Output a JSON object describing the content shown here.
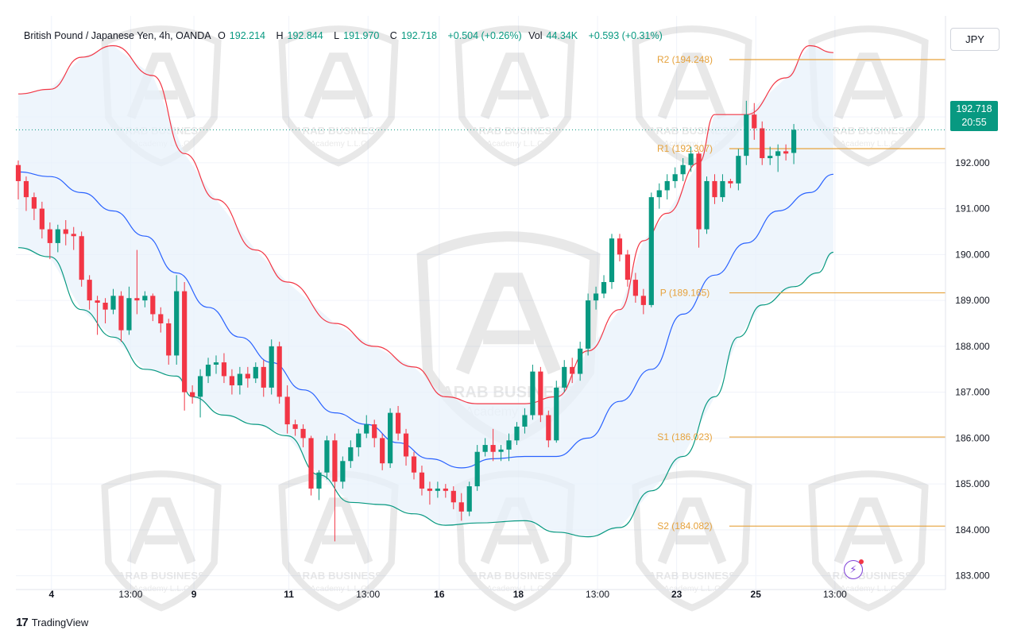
{
  "legend": {
    "symbol": "British Pound / Japanese Yen, 4h, OANDA",
    "open_label": "O",
    "open": "192.214",
    "high_label": "H",
    "high": "192.844",
    "low_label": "L",
    "low": "191.970",
    "close_label": "C",
    "close": "192.718",
    "change": "+0.504 (+0.26%)",
    "vol_label": "Vol",
    "vol": "44.34K",
    "vol_change": "+0.593 (+0.31%)"
  },
  "currency_button": "JPY",
  "last_price": {
    "price": "192.718",
    "countdown": "20:55"
  },
  "branding": {
    "name": "TradingView",
    "watermark_line1": "ARAB BUSINESS",
    "watermark_line2": "Academy L.L.C"
  },
  "colors": {
    "up": "#089981",
    "down": "#f23645",
    "pivot": "#e6a23c",
    "bb_mid": "#2962ff",
    "bb_upper": "#f23645",
    "bb_lower": "#089981",
    "band_fill": "#e8f1fb"
  },
  "chart_data": {
    "type": "candlestick",
    "ylim": [
      182.7,
      195.2
    ],
    "y_ticks": [
      "183.000",
      "184.000",
      "185.000",
      "186.000",
      "187.000",
      "188.000",
      "189.000",
      "190.000",
      "191.000",
      "192.000",
      "193.000"
    ],
    "x_ticks": [
      "4",
      "13:00",
      "9",
      "11",
      "13:00",
      "16",
      "18",
      "13:00",
      "23",
      "25",
      "13:00"
    ],
    "x_tick_bars": [
      5,
      15,
      23,
      35,
      45,
      54,
      64,
      74,
      84,
      94,
      104
    ],
    "pivot_levels": [
      {
        "label": "R2",
        "value": 194.248,
        "text": "R2 (194.248)"
      },
      {
        "label": "R1",
        "value": 192.307,
        "text": "R1 (192.307)"
      },
      {
        "label": "P",
        "value": 189.165,
        "text": "P (189.165)"
      },
      {
        "label": "S1",
        "value": 186.023,
        "text": "S1 (186.023)"
      },
      {
        "label": "S2",
        "value": 184.082,
        "text": "S2 (184.082)"
      }
    ],
    "candles": [
      [
        191.95,
        191.6,
        192.05,
        191.2
      ],
      [
        191.6,
        191.25,
        191.7,
        190.95
      ],
      [
        191.25,
        191.0,
        191.35,
        190.75
      ],
      [
        191.0,
        190.55,
        191.15,
        190.35
      ],
      [
        190.55,
        190.25,
        190.7,
        189.9
      ],
      [
        190.25,
        190.55,
        190.65,
        190.05
      ],
      [
        190.55,
        190.45,
        190.75,
        190.2
      ],
      [
        190.45,
        190.4,
        190.6,
        190.1
      ],
      [
        190.4,
        189.45,
        190.5,
        189.3
      ],
      [
        189.45,
        189.0,
        189.55,
        188.8
      ],
      [
        189.0,
        188.95,
        189.1,
        188.25
      ],
      [
        188.95,
        188.8,
        189.05,
        188.5
      ],
      [
        188.8,
        189.1,
        189.25,
        188.7
      ],
      [
        189.1,
        188.35,
        189.2,
        188.1
      ],
      [
        188.35,
        189.05,
        189.3,
        188.25
      ],
      [
        189.05,
        189.0,
        190.1,
        188.7
      ],
      [
        189.0,
        189.1,
        189.2,
        188.85
      ],
      [
        189.1,
        188.7,
        189.15,
        188.55
      ],
      [
        188.7,
        188.5,
        188.85,
        188.3
      ],
      [
        188.5,
        187.8,
        188.6,
        187.6
      ],
      [
        187.8,
        189.2,
        189.55,
        187.6
      ],
      [
        189.2,
        187.0,
        189.4,
        186.6
      ],
      [
        187.0,
        186.9,
        187.15,
        186.75
      ],
      [
        186.9,
        187.35,
        187.5,
        186.45
      ],
      [
        187.35,
        187.6,
        187.75,
        187.2
      ],
      [
        187.6,
        187.65,
        187.8,
        187.4
      ],
      [
        187.65,
        187.35,
        187.85,
        187.2
      ],
      [
        187.35,
        187.15,
        187.5,
        186.95
      ],
      [
        187.15,
        187.4,
        187.55,
        186.95
      ],
      [
        187.4,
        187.3,
        187.55,
        187.1
      ],
      [
        187.3,
        187.55,
        187.65,
        187.2
      ],
      [
        187.55,
        187.1,
        187.7,
        186.9
      ],
      [
        187.1,
        188.0,
        188.15,
        186.95
      ],
      [
        188.0,
        186.9,
        188.1,
        186.75
      ],
      [
        186.9,
        186.3,
        187.15,
        186.1
      ],
      [
        186.3,
        186.2,
        186.4,
        186.05
      ],
      [
        186.2,
        186.0,
        186.3,
        185.8
      ],
      [
        186.0,
        184.9,
        186.05,
        184.75
      ],
      [
        184.9,
        185.25,
        185.3,
        184.65
      ],
      [
        185.25,
        185.95,
        186.05,
        185.1
      ],
      [
        185.95,
        185.05,
        186.1,
        183.75
      ],
      [
        185.05,
        185.5,
        185.6,
        184.9
      ],
      [
        185.5,
        185.8,
        185.95,
        185.35
      ],
      [
        185.8,
        186.1,
        186.2,
        185.6
      ],
      [
        186.1,
        186.3,
        186.5,
        186.0
      ],
      [
        186.3,
        186.0,
        186.4,
        185.8
      ],
      [
        186.0,
        185.45,
        186.1,
        185.3
      ],
      [
        185.45,
        186.55,
        186.65,
        185.35
      ],
      [
        186.55,
        186.1,
        186.7,
        185.95
      ],
      [
        186.1,
        185.6,
        186.2,
        185.4
      ],
      [
        185.6,
        185.25,
        185.7,
        185.1
      ],
      [
        185.25,
        184.9,
        185.4,
        184.75
      ],
      [
        184.9,
        184.85,
        185.05,
        184.55
      ],
      [
        184.85,
        184.9,
        185.05,
        184.7
      ],
      [
        184.9,
        184.85,
        185.0,
        184.7
      ],
      [
        184.85,
        184.6,
        184.95,
        184.45
      ],
      [
        184.6,
        184.4,
        184.8,
        184.2
      ],
      [
        184.4,
        184.95,
        185.05,
        184.3
      ],
      [
        184.95,
        185.7,
        185.85,
        184.85
      ],
      [
        185.7,
        185.85,
        186.0,
        185.6
      ],
      [
        185.85,
        185.7,
        186.2,
        185.5
      ],
      [
        185.7,
        185.75,
        185.85,
        185.5
      ],
      [
        185.75,
        185.95,
        186.1,
        185.5
      ],
      [
        185.95,
        186.25,
        186.35,
        185.85
      ],
      [
        186.25,
        186.5,
        186.65,
        186.1
      ],
      [
        186.5,
        187.45,
        187.6,
        186.4
      ],
      [
        187.45,
        186.5,
        187.55,
        186.35
      ],
      [
        186.5,
        185.95,
        186.6,
        185.8
      ],
      [
        185.95,
        187.1,
        187.25,
        185.9
      ],
      [
        187.1,
        187.55,
        187.7,
        187.0
      ],
      [
        187.55,
        187.4,
        187.75,
        187.2
      ],
      [
        187.4,
        187.95,
        188.1,
        187.25
      ],
      [
        187.95,
        189.0,
        189.15,
        187.8
      ],
      [
        189.0,
        189.15,
        189.3,
        188.8
      ],
      [
        189.15,
        189.4,
        189.55,
        189.05
      ],
      [
        189.4,
        190.35,
        190.45,
        189.25
      ],
      [
        190.35,
        190.0,
        190.45,
        189.85
      ],
      [
        190.0,
        189.45,
        190.1,
        189.3
      ],
      [
        189.45,
        189.1,
        189.6,
        188.95
      ],
      [
        189.1,
        188.9,
        189.25,
        188.7
      ],
      [
        188.9,
        191.25,
        191.35,
        188.85
      ],
      [
        191.25,
        191.4,
        191.55,
        191.0
      ],
      [
        191.4,
        191.6,
        191.75,
        191.2
      ],
      [
        191.6,
        191.75,
        191.9,
        191.45
      ],
      [
        191.75,
        191.95,
        192.1,
        191.6
      ],
      [
        191.95,
        192.2,
        192.35,
        191.8
      ],
      [
        192.2,
        190.55,
        192.25,
        190.15
      ],
      [
        190.55,
        191.6,
        191.7,
        190.45
      ],
      [
        191.6,
        191.25,
        191.75,
        191.1
      ],
      [
        191.25,
        191.6,
        191.75,
        191.15
      ],
      [
        191.6,
        191.55,
        191.65,
        191.45
      ],
      [
        191.55,
        192.15,
        192.3,
        191.4
      ],
      [
        192.15,
        193.05,
        193.35,
        191.95
      ],
      [
        193.05,
        192.75,
        193.3,
        192.5
      ],
      [
        192.75,
        192.1,
        192.9,
        191.95
      ],
      [
        192.1,
        192.15,
        192.35,
        191.95
      ],
      [
        192.15,
        192.25,
        192.4,
        191.8
      ],
      [
        192.25,
        192.2,
        192.4,
        192.05
      ],
      [
        192.214,
        192.718,
        192.844,
        191.97
      ]
    ],
    "bb_upper": [
      [
        0,
        193.5
      ],
      [
        4,
        193.6
      ],
      [
        8,
        194.3
      ],
      [
        12,
        194.55
      ],
      [
        17,
        193.9
      ],
      [
        21,
        192.2
      ],
      [
        25,
        191.2
      ],
      [
        30,
        190.1
      ],
      [
        34,
        189.4
      ],
      [
        40,
        188.5
      ],
      [
        45,
        188.0
      ],
      [
        50,
        187.55
      ],
      [
        54,
        186.9
      ],
      [
        58,
        186.75
      ],
      [
        64,
        186.75
      ],
      [
        68,
        186.9
      ],
      [
        72,
        187.9
      ],
      [
        76,
        188.8
      ],
      [
        79,
        190.3
      ],
      [
        82,
        190.9
      ],
      [
        86,
        192.0
      ],
      [
        88,
        193.05
      ],
      [
        92,
        193.05
      ],
      [
        97,
        193.85
      ],
      [
        100,
        194.55
      ],
      [
        103,
        194.4
      ]
    ],
    "bb_mid": [
      [
        0,
        191.8
      ],
      [
        4,
        191.7
      ],
      [
        8,
        191.35
      ],
      [
        12,
        190.95
      ],
      [
        16,
        190.4
      ],
      [
        20,
        189.6
      ],
      [
        24,
        188.85
      ],
      [
        28,
        188.2
      ],
      [
        32,
        187.65
      ],
      [
        36,
        187.05
      ],
      [
        40,
        186.55
      ],
      [
        44,
        186.3
      ],
      [
        48,
        185.9
      ],
      [
        52,
        185.55
      ],
      [
        56,
        185.35
      ],
      [
        60,
        185.55
      ],
      [
        64,
        185.6
      ],
      [
        68,
        185.6
      ],
      [
        72,
        186.0
      ],
      [
        76,
        186.8
      ],
      [
        80,
        187.5
      ],
      [
        84,
        188.7
      ],
      [
        88,
        189.55
      ],
      [
        92,
        190.25
      ],
      [
        96,
        190.95
      ],
      [
        100,
        191.35
      ],
      [
        103,
        191.75
      ]
    ],
    "bb_lower": [
      [
        0,
        190.15
      ],
      [
        4,
        189.95
      ],
      [
        8,
        188.8
      ],
      [
        12,
        188.2
      ],
      [
        16,
        187.5
      ],
      [
        20,
        187.35
      ],
      [
        22,
        186.9
      ],
      [
        26,
        186.5
      ],
      [
        30,
        186.3
      ],
      [
        34,
        186.05
      ],
      [
        38,
        185.2
      ],
      [
        42,
        184.6
      ],
      [
        46,
        184.55
      ],
      [
        50,
        184.35
      ],
      [
        54,
        184.1
      ],
      [
        58,
        184.15
      ],
      [
        64,
        184.2
      ],
      [
        68,
        183.95
      ],
      [
        72,
        183.85
      ],
      [
        76,
        184.05
      ],
      [
        80,
        184.85
      ],
      [
        84,
        185.6
      ],
      [
        88,
        186.9
      ],
      [
        91,
        188.2
      ],
      [
        94,
        188.9
      ],
      [
        98,
        189.3
      ],
      [
        101,
        189.6
      ],
      [
        103,
        190.05
      ]
    ],
    "last_price_line": 192.718
  }
}
